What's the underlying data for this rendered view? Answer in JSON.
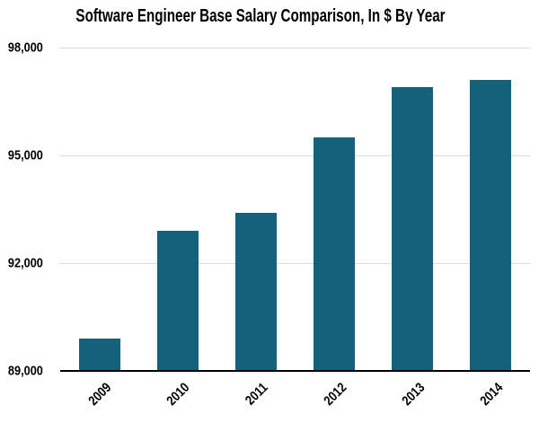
{
  "chart_data": {
    "type": "bar",
    "title": "Software Engineer Base Salary Comparison, In $ By Year",
    "categories": [
      "2009",
      "2010",
      "2011",
      "2012",
      "2013",
      "2014"
    ],
    "values": [
      89900,
      92900,
      93400,
      95500,
      96900,
      97100
    ],
    "xlabel": "",
    "ylabel": "",
    "ylim": [
      89000,
      98000
    ],
    "yticks": [
      89000,
      92000,
      95000,
      98000
    ],
    "ytick_labels": [
      "89,000",
      "92,000",
      "95,000",
      "98,000"
    ],
    "grid": true,
    "legend": "none",
    "colors": {
      "bar": "#13617B",
      "gridline": "#DDDDDD",
      "axis": "#000000",
      "text": "#000000",
      "background": "#FFFFFF"
    }
  }
}
